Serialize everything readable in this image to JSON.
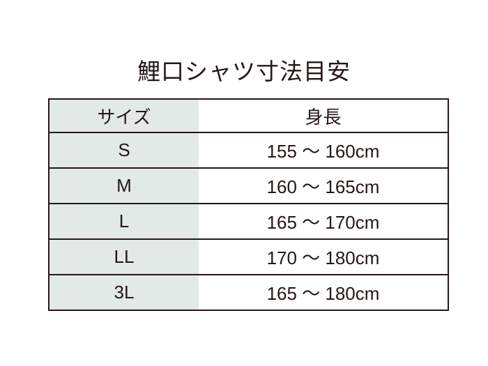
{
  "title": "鯉口シャツ寸法目安",
  "table": {
    "headers": [
      "サイズ",
      "身長"
    ],
    "rows": [
      {
        "size": "S",
        "height": "155 〜 160cm"
      },
      {
        "size": "M",
        "height": "160 〜 165cm"
      },
      {
        "size": "L",
        "height": "165 〜 170cm"
      },
      {
        "size": "LL",
        "height": "170 〜 180cm"
      },
      {
        "size": "3L",
        "height": "165 〜 180cm"
      }
    ]
  },
  "colors": {
    "size_column_bg": "#e3e9e6",
    "border": "#231815"
  }
}
